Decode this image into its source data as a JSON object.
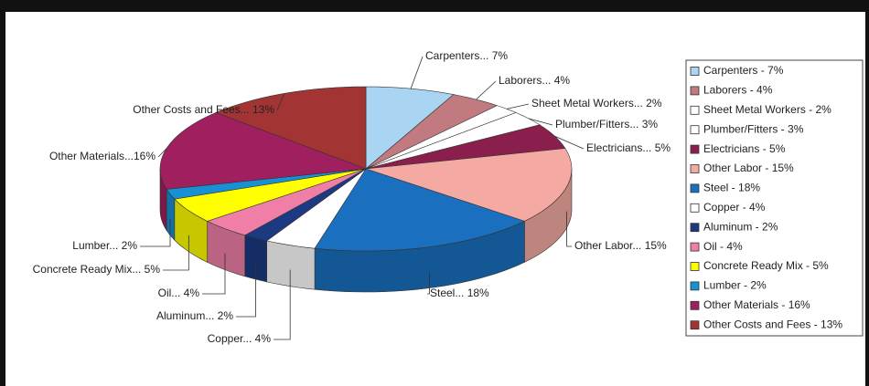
{
  "chart_data": {
    "type": "pie",
    "categories": [
      "Carpenters - 7%",
      "Laborers - 4%",
      "Sheet Metal Workers - 2%",
      "Plumber/Fitters - 3%",
      "Electricians - 5%",
      "Other Labor - 15%",
      "Steel - 18%",
      "Copper - 4%",
      "Aluminum - 2%",
      "Oil - 4%",
      "Concrete Ready Mix - 5%",
      "Lumber - 2%",
      "Other Materials - 16%",
      "Other Costs and Fees - 13%"
    ],
    "values": [
      7,
      4,
      2,
      3,
      5,
      15,
      18,
      4,
      2,
      4,
      5,
      2,
      16,
      13
    ],
    "value_labels": [
      "Carpenters... 7%",
      "Laborers... 4%",
      "Sheet Metal Workers... 2%",
      "Plumber/Fitters... 3%",
      "Electricians... 5%",
      "Other Labor... 15%",
      "Steel... 18%",
      "Copper... 4%",
      "Aluminum... 2%",
      "Oil... 4%",
      "Concrete Ready Mix... 5%",
      "Lumber... 2%",
      "Other Materials...16%",
      "Other Costs and Fees... 13%"
    ],
    "colors": [
      "#a9d5f2",
      "#c07a80",
      "#ffffff",
      "#ffffff",
      "#8a1f4e",
      "#f4aaa2",
      "#1a6fbf",
      "#ffffff",
      "#1b3a82",
      "#f07fa8",
      "#ffff00",
      "#1890d4",
      "#a01f5e",
      "#a23434"
    ],
    "legend": "right"
  }
}
